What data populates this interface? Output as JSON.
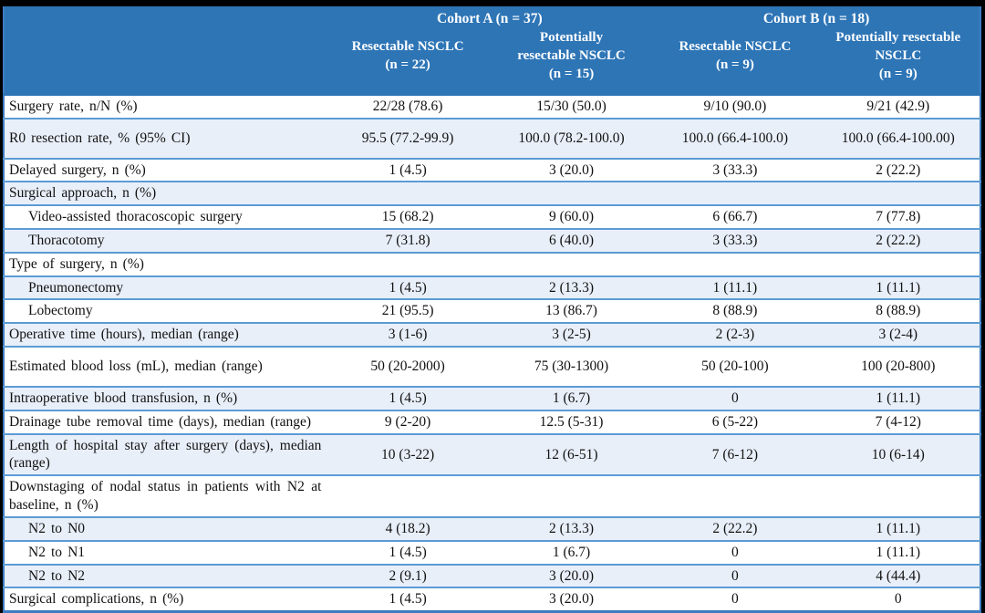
{
  "header": {
    "cohort_a": "Cohort A (n = 37)",
    "cohort_b": "Cohort B (n = 18)",
    "columns": [
      "Resectable NSCLC\n(n = 22)",
      "Potentially\nresectable NSCLC\n(n = 15)",
      "Resectable NSCLC\n(n = 9)",
      "Potentially resectable\nNSCLC\n(n = 9)"
    ]
  },
  "rows": [
    {
      "label": "Surgery rate, n/N (%)",
      "indent": false,
      "tall": false,
      "values": [
        "22/28 (78.6)",
        "15/30 (50.0)",
        "9/10 (90.0)",
        "9/21 (42.9)"
      ]
    },
    {
      "label": "R0 resection rate, % (95% CI)",
      "indent": false,
      "tall": true,
      "values": [
        "95.5 (77.2-99.9)",
        "100.0 (78.2-100.0)",
        "100.0 (66.4-100.0)",
        "100.0 (66.4-100.00)"
      ]
    },
    {
      "label": "Delayed surgery, n (%)",
      "indent": false,
      "tall": false,
      "values": [
        "1 (4.5)",
        "3 (20.0)",
        "3 (33.3)",
        "2 (22.2)"
      ]
    },
    {
      "label": "Surgical approach, n (%)",
      "indent": false,
      "tall": false,
      "values": [
        "",
        "",
        "",
        ""
      ]
    },
    {
      "label": "Video-assisted thoracoscopic surgery",
      "indent": true,
      "tall": false,
      "values": [
        "15 (68.2)",
        "9 (60.0)",
        "6 (66.7)",
        "7 (77.8)"
      ]
    },
    {
      "label": "Thoracotomy",
      "indent": true,
      "tall": false,
      "values": [
        "7 (31.8)",
        "6 (40.0)",
        "3 (33.3)",
        "2 (22.2)"
      ]
    },
    {
      "label": "Type of surgery, n (%)",
      "indent": false,
      "tall": false,
      "values": [
        "",
        "",
        "",
        ""
      ]
    },
    {
      "label": "Pneumonectomy",
      "indent": true,
      "tall": false,
      "values": [
        "1 (4.5)",
        "2 (13.3)",
        "1 (11.1)",
        "1 (11.1)"
      ]
    },
    {
      "label": "Lobectomy",
      "indent": true,
      "tall": false,
      "values": [
        "21 (95.5)",
        "13 (86.7)",
        "8 (88.9)",
        "8 (88.9)"
      ]
    },
    {
      "label": "Operative time (hours), median (range)",
      "indent": false,
      "tall": false,
      "values": [
        "3 (1-6)",
        "3 (2-5)",
        "2 (2-3)",
        "3 (2-4)"
      ]
    },
    {
      "label": "Estimated blood loss (mL), median (range)",
      "indent": false,
      "tall": true,
      "values": [
        "50 (20-2000)",
        "75 (30-1300)",
        "50 (20-100)",
        "100 (20-800)"
      ]
    },
    {
      "label": "Intraoperative blood transfusion, n (%)",
      "indent": false,
      "tall": false,
      "values": [
        "1 (4.5)",
        "1 (6.7)",
        "0",
        "1 (11.1)"
      ]
    },
    {
      "label": "Drainage tube removal time (days), median (range)",
      "indent": false,
      "tall": false,
      "values": [
        "9 (2-20)",
        "12.5 (5-31)",
        "6 (5-22)",
        "7 (4-12)"
      ]
    },
    {
      "label": "Length of hospital stay after surgery (days), median (range)",
      "indent": false,
      "tall": false,
      "values": [
        "10 (3-22)",
        "12 (6-51)",
        "7 (6-12)",
        "10 (6-14)"
      ]
    },
    {
      "label": "Downstaging of nodal status in patients with N2 at baseline, n (%)",
      "indent": false,
      "tall": false,
      "values": [
        "",
        "",
        "",
        ""
      ]
    },
    {
      "label": "N2 to N0",
      "indent": true,
      "tall": false,
      "values": [
        "4 (18.2)",
        "2 (13.3)",
        "2 (22.2)",
        "1 (11.1)"
      ]
    },
    {
      "label": "N2 to N1",
      "indent": true,
      "tall": false,
      "values": [
        "1 (4.5)",
        "1 (6.7)",
        "0",
        "1 (11.1)"
      ]
    },
    {
      "label": "N2 to N2",
      "indent": true,
      "tall": false,
      "values": [
        "2 (9.1)",
        "3 (20.0)",
        "0",
        "4 (44.4)"
      ]
    },
    {
      "label": "Surgical complications, n (%)",
      "indent": false,
      "tall": false,
      "values": [
        "1 (4.5)",
        "3 (20.0)",
        "0",
        "0"
      ]
    }
  ],
  "colors": {
    "header_blue": "#2e75b6",
    "row_stripe_blue": "#e9eff9",
    "row_border_blue": "#5b9bd5",
    "frame_black": "#000000"
  }
}
